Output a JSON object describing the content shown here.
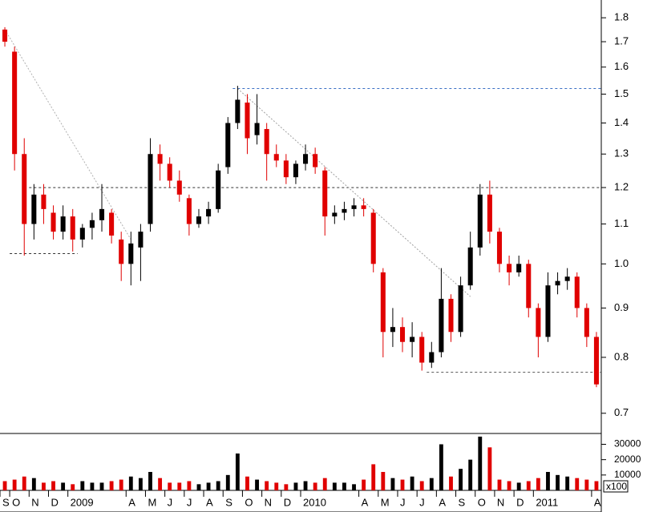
{
  "chart_data": {
    "type": "candlestick",
    "log": true,
    "up_color": "#000000",
    "down_color": "#e00000",
    "categories": [
      "S",
      "O",
      null,
      "N",
      null,
      "D",
      null,
      "2009",
      null,
      null,
      null,
      null,
      null,
      "A",
      null,
      "M",
      null,
      "J",
      null,
      "J",
      null,
      "A",
      null,
      "S",
      null,
      "O",
      null,
      "N",
      null,
      "D",
      null,
      "2010",
      null,
      null,
      null,
      null,
      null,
      "A",
      null,
      "M",
      null,
      "J",
      null,
      "J",
      null,
      "A",
      null,
      "S",
      null,
      "O",
      null,
      "N",
      null,
      "D",
      null,
      "2011",
      null,
      null,
      null,
      null,
      null,
      "A"
    ],
    "open": [
      1.75,
      1.66,
      1.3,
      1.1,
      1.18,
      1.13,
      1.08,
      1.12,
      1.06,
      1.09,
      1.11,
      1.13,
      1.06,
      1.0,
      1.04,
      1.1,
      1.3,
      1.27,
      1.22,
      1.17,
      1.1,
      1.12,
      1.14,
      1.26,
      1.4,
      1.47,
      1.36,
      1.38,
      1.3,
      1.28,
      1.23,
      1.27,
      1.3,
      1.25,
      1.12,
      1.13,
      1.14,
      1.15,
      1.13,
      0.98,
      0.85,
      0.86,
      0.83,
      0.84,
      0.79,
      0.81,
      0.92,
      0.85,
      0.95,
      1.04,
      1.18,
      1.08,
      1.0,
      0.98,
      1.0,
      0.9,
      0.84,
      0.95,
      0.96,
      0.97,
      0.9,
      0.84
    ],
    "high": [
      1.76,
      1.68,
      1.35,
      1.21,
      1.21,
      1.15,
      1.15,
      1.14,
      1.1,
      1.13,
      1.21,
      1.14,
      1.08,
      1.08,
      1.1,
      1.35,
      1.33,
      1.29,
      1.25,
      1.18,
      1.14,
      1.16,
      1.27,
      1.42,
      1.53,
      1.5,
      1.5,
      1.4,
      1.33,
      1.3,
      1.28,
      1.33,
      1.32,
      1.26,
      1.15,
      1.16,
      1.17,
      1.17,
      1.14,
      0.99,
      0.9,
      0.88,
      0.87,
      0.85,
      0.83,
      0.99,
      0.93,
      0.97,
      1.08,
      1.21,
      1.22,
      1.09,
      1.02,
      1.02,
      1.01,
      0.91,
      0.98,
      0.98,
      0.99,
      0.98,
      0.91,
      0.85
    ],
    "low": [
      1.68,
      1.25,
      1.02,
      1.06,
      1.1,
      1.06,
      1.06,
      1.03,
      1.04,
      1.06,
      1.08,
      1.05,
      0.96,
      0.95,
      0.96,
      1.08,
      1.22,
      1.2,
      1.16,
      1.07,
      1.09,
      1.1,
      1.13,
      1.24,
      1.38,
      1.3,
      1.33,
      1.22,
      1.26,
      1.21,
      1.21,
      1.25,
      1.24,
      1.07,
      1.1,
      1.11,
      1.12,
      1.12,
      0.98,
      0.8,
      0.82,
      0.81,
      0.8,
      0.775,
      0.78,
      0.8,
      0.83,
      0.84,
      0.94,
      1.02,
      1.05,
      0.98,
      0.95,
      0.97,
      0.88,
      0.8,
      0.83,
      0.93,
      0.94,
      0.88,
      0.82,
      0.745
    ],
    "close": [
      1.7,
      1.3,
      1.1,
      1.18,
      1.14,
      1.08,
      1.12,
      1.06,
      1.09,
      1.11,
      1.14,
      1.07,
      1.0,
      1.05,
      1.08,
      1.3,
      1.27,
      1.22,
      1.18,
      1.1,
      1.12,
      1.14,
      1.25,
      1.4,
      1.48,
      1.35,
      1.4,
      1.3,
      1.28,
      1.23,
      1.27,
      1.3,
      1.26,
      1.12,
      1.13,
      1.14,
      1.15,
      1.14,
      1.0,
      0.85,
      0.86,
      0.83,
      0.84,
      0.79,
      0.81,
      0.92,
      0.85,
      0.95,
      1.04,
      1.18,
      1.08,
      1.0,
      0.98,
      1.0,
      0.9,
      0.84,
      0.95,
      0.96,
      0.97,
      0.9,
      0.84,
      0.75
    ],
    "volume": [
      6000,
      7000,
      9000,
      8000,
      5000,
      6000,
      5000,
      4000,
      6000,
      5000,
      5000,
      6000,
      7000,
      9000,
      8000,
      12000,
      8000,
      5000,
      5000,
      6000,
      4000,
      5000,
      6000,
      10000,
      24000,
      9000,
      7000,
      6000,
      5000,
      4000,
      5000,
      6000,
      5000,
      8000,
      5000,
      5000,
      4000,
      7000,
      17000,
      12000,
      8000,
      7000,
      9000,
      6000,
      8000,
      30000,
      9000,
      14000,
      20000,
      35000,
      28000,
      7000,
      6000,
      5000,
      6000,
      8000,
      12000,
      10000,
      9000,
      8000,
      7000,
      6000
    ],
    "ylim": [
      0.667,
      1.878
    ],
    "yticks": [
      0.7,
      0.8,
      0.9,
      {
        "value": 1,
        "label": "1.0"
      },
      1.1,
      1.2,
      1.3,
      1.4,
      1.5,
      1.6,
      1.7,
      1.8
    ],
    "volume_ylim": [
      0,
      36000
    ],
    "volume_yticks": [
      10000,
      20000,
      30000
    ],
    "volume_unit": "x100",
    "reference_lines": [
      {
        "value": 1.52,
        "start": 24,
        "color": "#3a6fc4"
      },
      {
        "value": 1.2,
        "start": 3,
        "color": "#333333"
      },
      {
        "value": 1.025,
        "start": 1,
        "end": 7,
        "color": "#333333"
      },
      {
        "value": 0.772,
        "start": 44,
        "color": "#555555"
      }
    ],
    "trend_lines": [
      {
        "points": [
          [
            0,
            1.75
          ],
          [
            13,
            1.06
          ]
        ],
        "color": "#b0b0b0"
      },
      {
        "points": [
          [
            24,
            1.52
          ],
          [
            48,
            0.925
          ]
        ],
        "color": "#a0a0a0"
      }
    ]
  }
}
